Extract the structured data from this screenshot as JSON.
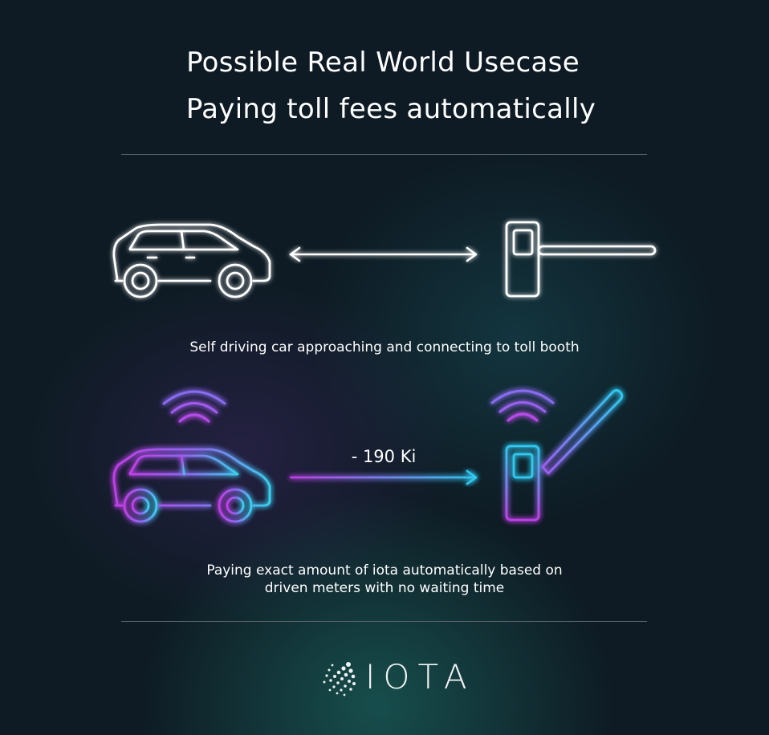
{
  "title": {
    "line1": "Possible Real World Usecase",
    "line2": "Paying toll fees automatically"
  },
  "scene1": {
    "caption": "Self driving car approaching and connecting to toll booth",
    "car_icon": "car-outline-icon",
    "arrow_icon": "double-arrow-icon",
    "booth_icon": "toll-booth-closed-icon"
  },
  "scene2": {
    "amount": "- 190 Ki",
    "caption_line1": "Paying exact amount of iota automatically based on",
    "caption_line2": "driven meters with no waiting time",
    "car_icon": "car-connected-icon",
    "booth_icon": "toll-booth-open-icon",
    "signal_icon": "wifi-signal-icon"
  },
  "logo": {
    "text": "IOTA",
    "icon": "iota-logo-icon"
  },
  "colors": {
    "background": "#0e1b24",
    "neon_white": "#ffffff",
    "neon_purple": "#c040e8",
    "neon_cyan": "#30c8f0",
    "divider": "#56606a"
  }
}
